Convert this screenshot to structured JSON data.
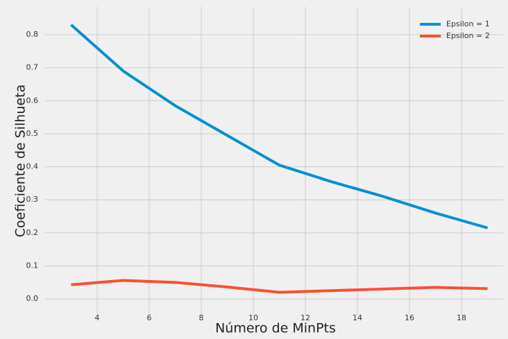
{
  "chart_data": {
    "type": "line",
    "xlabel": "Número de MinPts",
    "ylabel": "Coeficiente de Silhueta",
    "x": [
      3,
      5,
      7,
      9,
      11,
      13,
      15,
      17,
      19
    ],
    "series": [
      {
        "name": "Epsilon = 1",
        "color": "#008fd5",
        "values": [
          0.83,
          0.69,
          0.585,
          0.495,
          0.405,
          0.355,
          0.31,
          0.26,
          0.215
        ]
      },
      {
        "name": "Epsilon = 2",
        "color": "#fc4f30",
        "values": [
          0.043,
          0.056,
          0.05,
          0.036,
          0.02,
          0.025,
          0.03,
          0.035,
          0.031
        ]
      }
    ],
    "xlim": [
      2.0,
      19.6
    ],
    "xticks": [
      4,
      6,
      8,
      10,
      12,
      14,
      16,
      18
    ],
    "ylim": [
      -0.05,
      0.884
    ],
    "yticks": [
      {
        "value": 0,
        "label": "0.0"
      },
      0.1,
      0.2,
      0.3,
      0.4,
      0.5,
      0.6,
      0.7,
      0.8
    ],
    "grid": true,
    "legend": "upper right"
  }
}
